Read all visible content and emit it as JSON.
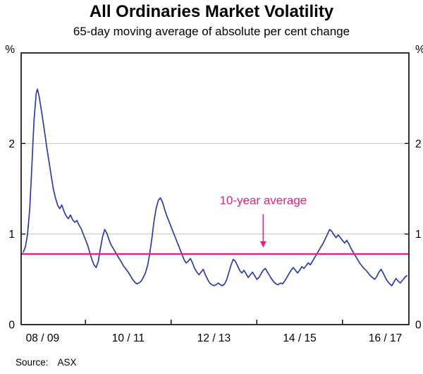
{
  "header": {
    "title": "All Ordinaries Market Volatility",
    "subtitle": "65-day moving average of absolute per cent change"
  },
  "footer": {
    "source_label": "Source:",
    "source_value": "ASX"
  },
  "chart_data": {
    "type": "line",
    "title": "All Ordinaries Market Volatility",
    "subtitle": "65-day moving average of absolute per cent change",
    "xlabel": "",
    "ylabel": "%",
    "unit": "%",
    "xlim": [
      2008.5,
      2017.55
    ],
    "ylim": [
      0,
      3
    ],
    "yticks": [
      0,
      1,
      2
    ],
    "grid_values": [
      1,
      2
    ],
    "x_boundary_ticks": [
      2010,
      2012,
      2014,
      2016
    ],
    "x_labels": [
      {
        "text": "08 / 09",
        "x": 2009.0
      },
      {
        "text": "10 / 11",
        "x": 2011.0
      },
      {
        "text": "12 / 13",
        "x": 2013.0
      },
      {
        "text": "14 / 15",
        "x": 2015.0
      },
      {
        "text": "16 / 17",
        "x": 2017.0
      }
    ],
    "legend": "none",
    "grid": "horizontal-only",
    "average_line": {
      "value": 0.78,
      "label": "10-year average",
      "label_pos": {
        "x": 2014.15,
        "y": 1.33
      },
      "arrow": {
        "x": 2014.15,
        "from_y": 1.22,
        "to_y": 0.85
      }
    },
    "colors": {
      "series": "#2e3d9e",
      "average": "#e2247f",
      "grid": "#c6c6c6",
      "axis": "#000000"
    },
    "series": [
      {
        "name": "65-day moving average volatility",
        "points": [
          [
            2008.55,
            0.8
          ],
          [
            2008.6,
            0.86
          ],
          [
            2008.65,
            1.0
          ],
          [
            2008.7,
            1.28
          ],
          [
            2008.75,
            1.75
          ],
          [
            2008.8,
            2.25
          ],
          [
            2008.85,
            2.55
          ],
          [
            2008.88,
            2.6
          ],
          [
            2008.92,
            2.52
          ],
          [
            2008.96,
            2.4
          ],
          [
            2009.0,
            2.28
          ],
          [
            2009.05,
            2.12
          ],
          [
            2009.1,
            1.95
          ],
          [
            2009.15,
            1.8
          ],
          [
            2009.2,
            1.65
          ],
          [
            2009.25,
            1.5
          ],
          [
            2009.3,
            1.4
          ],
          [
            2009.35,
            1.32
          ],
          [
            2009.4,
            1.28
          ],
          [
            2009.45,
            1.32
          ],
          [
            2009.5,
            1.25
          ],
          [
            2009.55,
            1.2
          ],
          [
            2009.6,
            1.17
          ],
          [
            2009.65,
            1.21
          ],
          [
            2009.7,
            1.16
          ],
          [
            2009.75,
            1.13
          ],
          [
            2009.8,
            1.15
          ],
          [
            2009.85,
            1.1
          ],
          [
            2009.9,
            1.06
          ],
          [
            2009.95,
            1.0
          ],
          [
            2010.0,
            0.94
          ],
          [
            2010.05,
            0.88
          ],
          [
            2010.1,
            0.8
          ],
          [
            2010.15,
            0.72
          ],
          [
            2010.2,
            0.66
          ],
          [
            2010.25,
            0.63
          ],
          [
            2010.3,
            0.7
          ],
          [
            2010.35,
            0.84
          ],
          [
            2010.4,
            0.97
          ],
          [
            2010.45,
            1.05
          ],
          [
            2010.5,
            1.01
          ],
          [
            2010.55,
            0.94
          ],
          [
            2010.6,
            0.88
          ],
          [
            2010.65,
            0.84
          ],
          [
            2010.7,
            0.8
          ],
          [
            2010.75,
            0.76
          ],
          [
            2010.8,
            0.72
          ],
          [
            2010.85,
            0.68
          ],
          [
            2010.9,
            0.64
          ],
          [
            2010.95,
            0.61
          ],
          [
            2011.0,
            0.58
          ],
          [
            2011.05,
            0.54
          ],
          [
            2011.1,
            0.5
          ],
          [
            2011.15,
            0.47
          ],
          [
            2011.2,
            0.45
          ],
          [
            2011.25,
            0.46
          ],
          [
            2011.3,
            0.48
          ],
          [
            2011.35,
            0.52
          ],
          [
            2011.4,
            0.57
          ],
          [
            2011.45,
            0.65
          ],
          [
            2011.5,
            0.78
          ],
          [
            2011.55,
            0.95
          ],
          [
            2011.6,
            1.14
          ],
          [
            2011.65,
            1.28
          ],
          [
            2011.7,
            1.37
          ],
          [
            2011.75,
            1.4
          ],
          [
            2011.8,
            1.35
          ],
          [
            2011.85,
            1.27
          ],
          [
            2011.9,
            1.2
          ],
          [
            2011.95,
            1.14
          ],
          [
            2012.0,
            1.08
          ],
          [
            2012.05,
            1.02
          ],
          [
            2012.1,
            0.96
          ],
          [
            2012.15,
            0.9
          ],
          [
            2012.2,
            0.84
          ],
          [
            2012.25,
            0.78
          ],
          [
            2012.3,
            0.72
          ],
          [
            2012.35,
            0.68
          ],
          [
            2012.4,
            0.7
          ],
          [
            2012.45,
            0.73
          ],
          [
            2012.5,
            0.68
          ],
          [
            2012.55,
            0.62
          ],
          [
            2012.6,
            0.58
          ],
          [
            2012.65,
            0.55
          ],
          [
            2012.7,
            0.58
          ],
          [
            2012.75,
            0.61
          ],
          [
            2012.8,
            0.55
          ],
          [
            2012.85,
            0.5
          ],
          [
            2012.9,
            0.46
          ],
          [
            2012.95,
            0.44
          ],
          [
            2013.0,
            0.43
          ],
          [
            2013.05,
            0.44
          ],
          [
            2013.1,
            0.46
          ],
          [
            2013.15,
            0.44
          ],
          [
            2013.2,
            0.43
          ],
          [
            2013.25,
            0.45
          ],
          [
            2013.3,
            0.5
          ],
          [
            2013.35,
            0.58
          ],
          [
            2013.4,
            0.66
          ],
          [
            2013.45,
            0.72
          ],
          [
            2013.5,
            0.7
          ],
          [
            2013.55,
            0.65
          ],
          [
            2013.6,
            0.6
          ],
          [
            2013.65,
            0.57
          ],
          [
            2013.7,
            0.6
          ],
          [
            2013.75,
            0.56
          ],
          [
            2013.8,
            0.52
          ],
          [
            2013.85,
            0.55
          ],
          [
            2013.9,
            0.58
          ],
          [
            2013.95,
            0.54
          ],
          [
            2014.0,
            0.5
          ],
          [
            2014.05,
            0.52
          ],
          [
            2014.1,
            0.56
          ],
          [
            2014.15,
            0.6
          ],
          [
            2014.2,
            0.62
          ],
          [
            2014.25,
            0.58
          ],
          [
            2014.3,
            0.54
          ],
          [
            2014.35,
            0.5
          ],
          [
            2014.4,
            0.47
          ],
          [
            2014.45,
            0.45
          ],
          [
            2014.5,
            0.44
          ],
          [
            2014.55,
            0.46
          ],
          [
            2014.6,
            0.45
          ],
          [
            2014.65,
            0.48
          ],
          [
            2014.7,
            0.52
          ],
          [
            2014.75,
            0.56
          ],
          [
            2014.8,
            0.6
          ],
          [
            2014.85,
            0.63
          ],
          [
            2014.9,
            0.6
          ],
          [
            2014.95,
            0.57
          ],
          [
            2015.0,
            0.6
          ],
          [
            2015.05,
            0.64
          ],
          [
            2015.1,
            0.62
          ],
          [
            2015.15,
            0.65
          ],
          [
            2015.2,
            0.68
          ],
          [
            2015.25,
            0.66
          ],
          [
            2015.3,
            0.7
          ],
          [
            2015.35,
            0.74
          ],
          [
            2015.4,
            0.78
          ],
          [
            2015.45,
            0.82
          ],
          [
            2015.5,
            0.86
          ],
          [
            2015.55,
            0.9
          ],
          [
            2015.6,
            0.95
          ],
          [
            2015.65,
            1.0
          ],
          [
            2015.7,
            1.05
          ],
          [
            2015.75,
            1.03
          ],
          [
            2015.8,
            0.99
          ],
          [
            2015.85,
            0.96
          ],
          [
            2015.9,
            0.99
          ],
          [
            2015.95,
            0.96
          ],
          [
            2016.0,
            0.93
          ],
          [
            2016.05,
            0.9
          ],
          [
            2016.1,
            0.93
          ],
          [
            2016.15,
            0.89
          ],
          [
            2016.2,
            0.84
          ],
          [
            2016.25,
            0.8
          ],
          [
            2016.3,
            0.76
          ],
          [
            2016.35,
            0.72
          ],
          [
            2016.4,
            0.68
          ],
          [
            2016.45,
            0.65
          ],
          [
            2016.5,
            0.62
          ],
          [
            2016.55,
            0.6
          ],
          [
            2016.6,
            0.57
          ],
          [
            2016.65,
            0.54
          ],
          [
            2016.7,
            0.52
          ],
          [
            2016.75,
            0.5
          ],
          [
            2016.8,
            0.53
          ],
          [
            2016.85,
            0.58
          ],
          [
            2016.9,
            0.61
          ],
          [
            2016.95,
            0.57
          ],
          [
            2017.0,
            0.52
          ],
          [
            2017.05,
            0.48
          ],
          [
            2017.1,
            0.45
          ],
          [
            2017.15,
            0.43
          ],
          [
            2017.2,
            0.47
          ],
          [
            2017.25,
            0.51
          ],
          [
            2017.3,
            0.48
          ],
          [
            2017.35,
            0.46
          ],
          [
            2017.4,
            0.49
          ],
          [
            2017.45,
            0.52
          ],
          [
            2017.5,
            0.54
          ]
        ]
      }
    ]
  }
}
